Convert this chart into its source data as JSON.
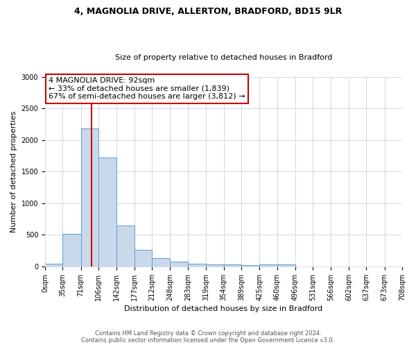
{
  "title_line1": "4, MAGNOLIA DRIVE, ALLERTON, BRADFORD, BD15 9LR",
  "title_line2": "Size of property relative to detached houses in Bradford",
  "xlabel": "Distribution of detached houses by size in Bradford",
  "ylabel": "Number of detached properties",
  "annotation_line1": "4 MAGNOLIA DRIVE: 92sqm",
  "annotation_line2": "← 33% of detached houses are smaller (1,839)",
  "annotation_line3": "67% of semi-detached houses are larger (3,812) →",
  "property_size_sqm": 92,
  "bin_edges": [
    0,
    35,
    71,
    106,
    142,
    177,
    212,
    248,
    283,
    319,
    354,
    389,
    425,
    460,
    496,
    531,
    566,
    602,
    637,
    673,
    708
  ],
  "bin_counts": [
    40,
    520,
    2190,
    1720,
    650,
    265,
    135,
    80,
    45,
    35,
    30,
    25,
    35,
    30,
    0,
    0,
    0,
    0,
    0,
    0
  ],
  "bar_color": "#c9d9ea",
  "bar_edge_color": "#5b9bd5",
  "vline_color": "#cc0000",
  "vline_x": 92,
  "annotation_box_color": "#ffffff",
  "annotation_box_edge_color": "#cc0000",
  "ylim": [
    0,
    3000
  ],
  "yticks": [
    0,
    500,
    1000,
    1500,
    2000,
    2500,
    3000
  ],
  "footer_line1": "Contains HM Land Registry data © Crown copyright and database right 2024.",
  "footer_line2": "Contains public sector information licensed under the Open Government Licence v3.0.",
  "background_color": "#ffffff",
  "grid_color": "#d0d8e4",
  "title_fontsize": 9,
  "subtitle_fontsize": 8,
  "xlabel_fontsize": 8,
  "ylabel_fontsize": 8,
  "annotation_fontsize": 8,
  "tick_fontsize": 7,
  "footer_fontsize": 6
}
